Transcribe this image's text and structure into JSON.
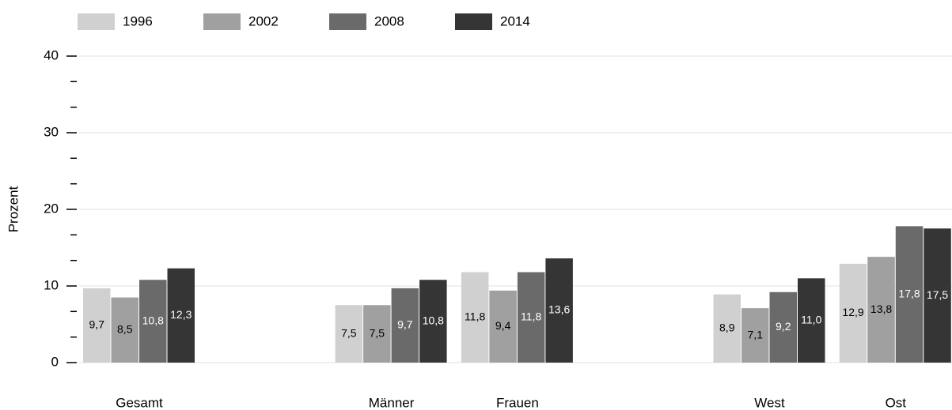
{
  "chart_data": {
    "type": "bar",
    "y_axis_label": "Prozent",
    "categories": [
      "Gesamt",
      null,
      "Männer",
      "Frauen",
      null,
      "West",
      "Ost"
    ],
    "series": [
      {
        "name": "1996",
        "color": "#d0d0d0",
        "values": [
          9.7,
          null,
          7.5,
          11.8,
          null,
          8.9,
          12.9
        ],
        "value_labels": [
          "9,7",
          null,
          "7,5",
          "11,8",
          null,
          "8,9",
          "12,9"
        ]
      },
      {
        "name": "2002",
        "color": "#a0a0a0",
        "values": [
          8.5,
          null,
          7.5,
          9.4,
          null,
          7.1,
          13.8
        ],
        "value_labels": [
          "8,5",
          null,
          "7,5",
          "9,4",
          null,
          "7,1",
          "13,8"
        ]
      },
      {
        "name": "2008",
        "color": "#6a6a6a",
        "values": [
          10.8,
          null,
          9.7,
          11.8,
          null,
          9.2,
          17.8
        ],
        "value_labels": [
          "10,8",
          null,
          "9,7",
          "11,8",
          null,
          "9,2",
          "17,8"
        ]
      },
      {
        "name": "2014",
        "color": "#353535",
        "values": [
          12.3,
          null,
          10.8,
          13.6,
          null,
          11.0,
          17.5
        ],
        "value_labels": [
          "12,3",
          null,
          "10,8",
          "13,6",
          null,
          "11,0",
          "17,5"
        ]
      }
    ],
    "ylim": [
      0,
      40
    ],
    "yticks": [
      0,
      10,
      20,
      30,
      40
    ],
    "yminorticks": [
      3.33,
      6.67,
      13.33,
      16.67,
      23.33,
      26.67,
      33.33,
      36.67
    ],
    "grid": true,
    "legend": "top"
  }
}
